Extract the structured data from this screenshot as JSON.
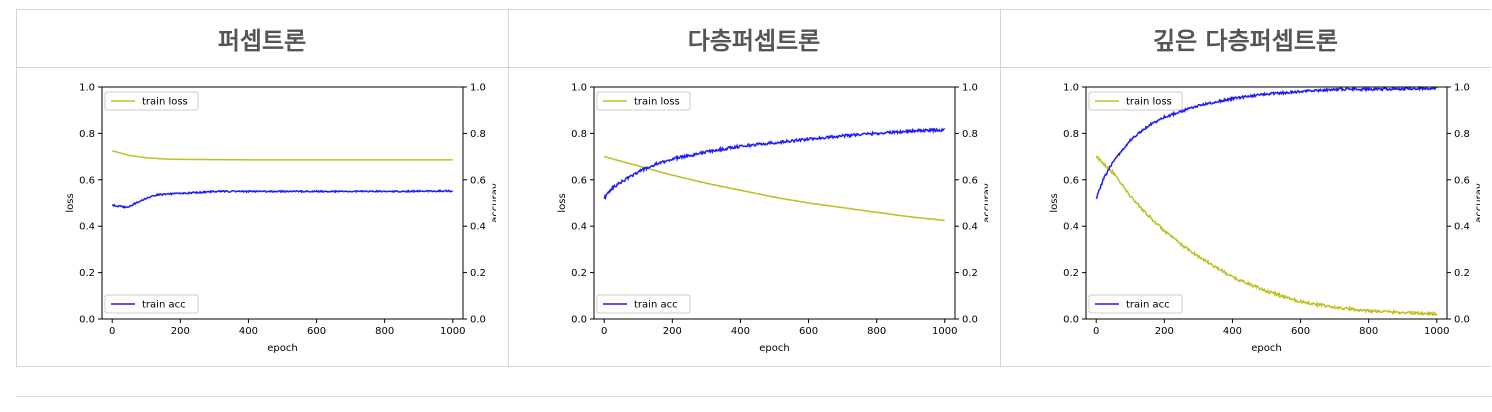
{
  "table": {
    "headers": [
      "퍼셉트론",
      "다층퍼셉트론",
      "깊은 다층퍼셉트론"
    ]
  },
  "chart_data": [
    {
      "type": "line",
      "title": "퍼셉트론",
      "xlabel": "epoch",
      "ylabel": "loss",
      "y2label": "accuray",
      "xlim": [
        0,
        1000
      ],
      "ylim": [
        0,
        1.0
      ],
      "y2lim": [
        0,
        1.0
      ],
      "xticks": [
        "0",
        "200",
        "400",
        "600",
        "800",
        "1000"
      ],
      "yticks": [
        "0.0",
        "0.2",
        "0.4",
        "0.6",
        "0.8",
        "1.0"
      ],
      "legend_loss": "train loss",
      "legend_acc": "train acc",
      "legend_loss_position": "upper-left",
      "legend_acc_position": "lower-left",
      "colors": {
        "loss": "#bfbf26",
        "acc": "#1f1ff5"
      },
      "series": [
        {
          "name": "train loss",
          "axis": "left",
          "x": [
            0,
            50,
            100,
            150,
            200,
            300,
            400,
            600,
            800,
            1000
          ],
          "values": [
            0.725,
            0.705,
            0.695,
            0.69,
            0.688,
            0.687,
            0.686,
            0.686,
            0.686,
            0.686
          ],
          "noise": 0
        },
        {
          "name": "train acc",
          "axis": "right",
          "x": [
            0,
            25,
            45,
            70,
            100,
            130,
            180,
            250,
            300,
            400,
            600,
            800,
            1000
          ],
          "values": [
            0.49,
            0.485,
            0.48,
            0.5,
            0.52,
            0.535,
            0.54,
            0.545,
            0.55,
            0.55,
            0.55,
            0.55,
            0.552
          ],
          "noise": 0.003
        }
      ]
    },
    {
      "type": "line",
      "title": "다층퍼셉트론",
      "xlabel": "epoch",
      "ylabel": "loss",
      "y2label": "accuray",
      "xlim": [
        0,
        1000
      ],
      "ylim": [
        0,
        1.0
      ],
      "y2lim": [
        0,
        1.0
      ],
      "xticks": [
        "0",
        "200",
        "400",
        "600",
        "800",
        "1000"
      ],
      "yticks": [
        "0.0",
        "0.2",
        "0.4",
        "0.6",
        "0.8",
        "1.0"
      ],
      "legend_loss": "train loss",
      "legend_acc": "train acc",
      "legend_loss_position": "upper-left",
      "legend_acc_position": "lower-left",
      "colors": {
        "loss": "#bfbf26",
        "acc": "#1f1ff5"
      },
      "series": [
        {
          "name": "train loss",
          "axis": "left",
          "x": [
            0,
            100,
            200,
            300,
            400,
            500,
            600,
            700,
            800,
            900,
            1000
          ],
          "values": [
            0.7,
            0.66,
            0.62,
            0.585,
            0.555,
            0.525,
            0.5,
            0.48,
            0.46,
            0.44,
            0.425
          ],
          "noise": 0.001
        },
        {
          "name": "train acc",
          "axis": "right",
          "x": [
            0,
            20,
            50,
            100,
            150,
            200,
            300,
            400,
            500,
            600,
            700,
            800,
            900,
            1000
          ],
          "values": [
            0.52,
            0.56,
            0.59,
            0.635,
            0.665,
            0.69,
            0.72,
            0.745,
            0.76,
            0.775,
            0.79,
            0.8,
            0.81,
            0.815
          ],
          "noise": 0.006
        }
      ]
    },
    {
      "type": "line",
      "title": "깊은 다층퍼셉트론",
      "xlabel": "epoch",
      "ylabel": "loss",
      "y2label": "accuray",
      "xlim": [
        0,
        1000
      ],
      "ylim": [
        0,
        1.0
      ],
      "y2lim": [
        0,
        1.0
      ],
      "xticks": [
        "0",
        "200",
        "400",
        "600",
        "800",
        "1000"
      ],
      "yticks": [
        "0.0",
        "0.2",
        "0.4",
        "0.6",
        "0.8",
        "1.0"
      ],
      "legend_loss": "train loss",
      "legend_acc": "train acc",
      "legend_loss_position": "upper-left",
      "legend_acc_position": "lower-left",
      "colors": {
        "loss": "#bfbf26",
        "acc": "#1f1ff5"
      },
      "series": [
        {
          "name": "train loss",
          "axis": "left",
          "x": [
            0,
            50,
            100,
            150,
            200,
            250,
            300,
            400,
            500,
            600,
            700,
            800,
            900,
            1000
          ],
          "values": [
            0.7,
            0.63,
            0.53,
            0.45,
            0.38,
            0.32,
            0.27,
            0.18,
            0.12,
            0.075,
            0.05,
            0.035,
            0.028,
            0.022
          ],
          "noise": 0.006
        },
        {
          "name": "train acc",
          "axis": "right",
          "x": [
            0,
            20,
            50,
            100,
            150,
            200,
            300,
            400,
            500,
            600,
            700,
            800,
            900,
            1000
          ],
          "values": [
            0.52,
            0.6,
            0.68,
            0.77,
            0.83,
            0.87,
            0.92,
            0.95,
            0.97,
            0.98,
            0.99,
            0.99,
            0.992,
            0.995
          ],
          "noise": 0.005
        }
      ]
    }
  ]
}
